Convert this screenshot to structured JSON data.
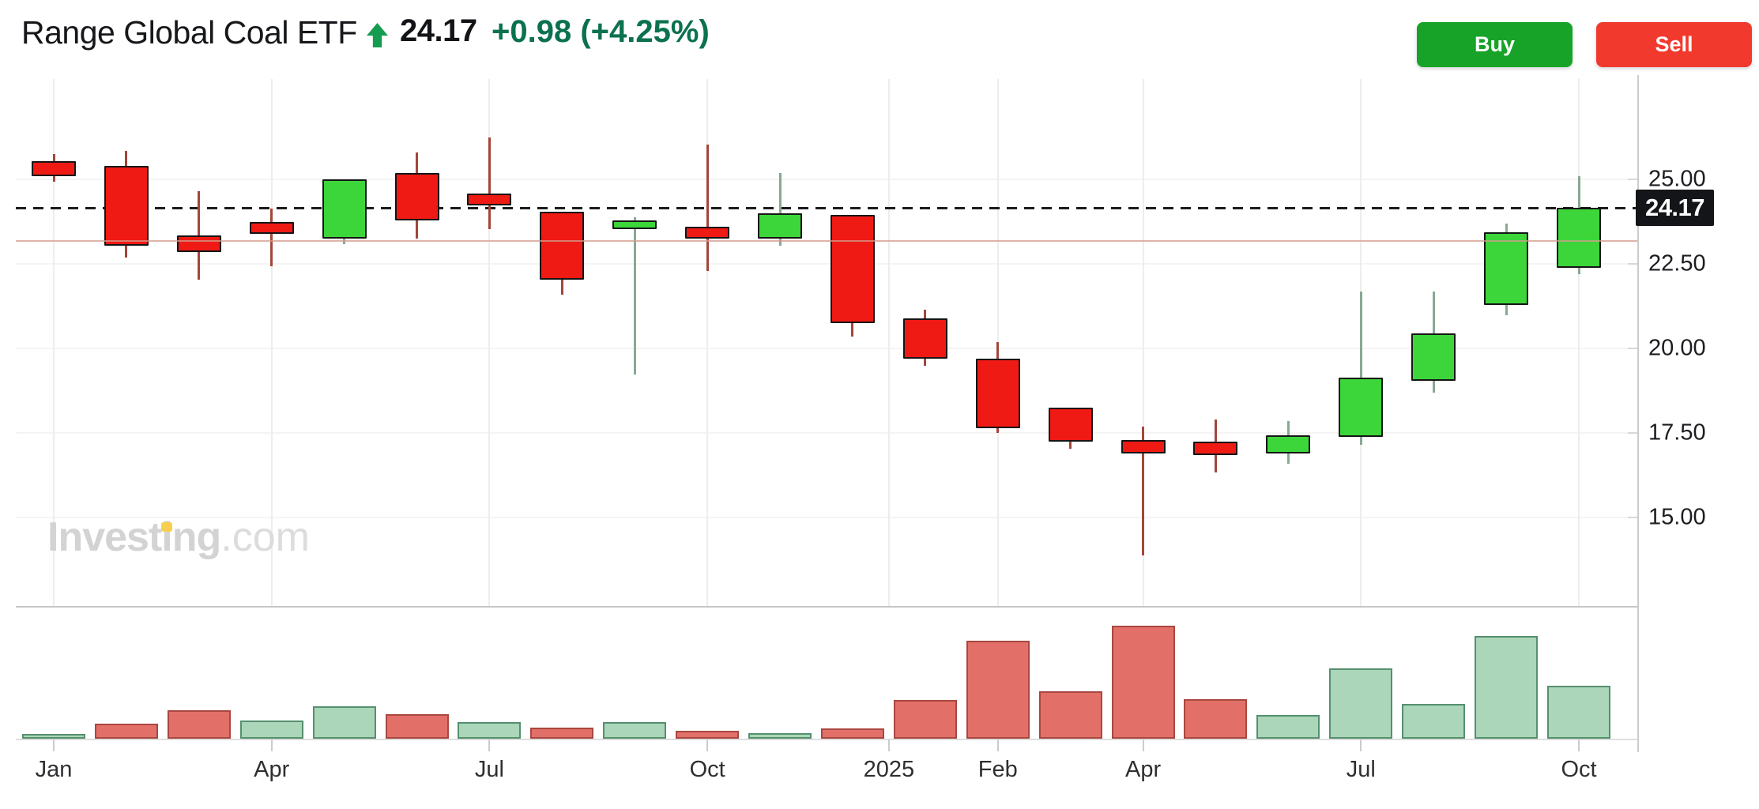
{
  "header": {
    "title": "Range Global Coal ETF",
    "price": "24.17",
    "change": "+0.98",
    "change_pct": "(+4.25%)",
    "buy_label": "Buy",
    "sell_label": "Sell"
  },
  "watermark": {
    "part1": "Invest",
    "dotted_i": "i",
    "part2": "ng",
    "suffix": ".com"
  },
  "price_axis": {
    "tick_labels": [
      "25.00",
      "22.50",
      "20.00",
      "17.50",
      "15.00"
    ],
    "current_label": "24.17"
  },
  "chart_data": {
    "type": "candlestick",
    "title": "Range Global Coal ETF — monthly candles with volume",
    "legend_position": "none",
    "grid": "faint",
    "y_ticks": [
      25.0,
      22.5,
      20.0,
      17.5,
      15.0
    ],
    "ylim": [
      13.5,
      26.8
    ],
    "current_price": 24.17,
    "prev_close": 23.19,
    "x_ticks": [
      {
        "label": "Jan",
        "month_index": 0
      },
      {
        "label": "Apr",
        "month_index": 3
      },
      {
        "label": "Jul",
        "month_index": 6
      },
      {
        "label": "Oct",
        "month_index": 9
      },
      {
        "label": "2025",
        "month_index": 11.5
      },
      {
        "label": "Feb",
        "month_index": 13
      },
      {
        "label": "Apr",
        "month_index": 15
      },
      {
        "label": "Jul",
        "month_index": 18
      },
      {
        "label": "Oct",
        "month_index": 21
      }
    ],
    "volume_unit": "relative, max = 100",
    "candles": [
      {
        "month": "Jan 2024",
        "open": 25.55,
        "high": 25.75,
        "low": 24.95,
        "close": 25.1,
        "dir": "down",
        "volume": 4,
        "vol_dir": "up"
      },
      {
        "month": "Feb 2024",
        "open": 25.4,
        "high": 25.85,
        "low": 22.7,
        "close": 23.05,
        "dir": "down",
        "volume": 13,
        "vol_dir": "down"
      },
      {
        "month": "Mar 2024",
        "open": 23.35,
        "high": 24.65,
        "low": 22.05,
        "close": 22.85,
        "dir": "down",
        "volume": 25,
        "vol_dir": "down"
      },
      {
        "month": "Apr 2024",
        "open": 23.75,
        "high": 24.15,
        "low": 22.45,
        "close": 23.4,
        "dir": "down",
        "volume": 16,
        "vol_dir": "up"
      },
      {
        "month": "May 2024",
        "open": 23.25,
        "high": 25.0,
        "low": 23.1,
        "close": 25.0,
        "dir": "up",
        "volume": 29,
        "vol_dir": "up"
      },
      {
        "month": "Jun 2024",
        "open": 25.2,
        "high": 25.8,
        "low": 23.25,
        "close": 23.8,
        "dir": "down",
        "volume": 22,
        "vol_dir": "down"
      },
      {
        "month": "Jul 2024",
        "open": 24.6,
        "high": 26.25,
        "low": 23.55,
        "close": 24.25,
        "dir": "down",
        "volume": 15,
        "vol_dir": "up"
      },
      {
        "month": "Aug 2024",
        "open": 24.05,
        "high": 24.05,
        "low": 21.6,
        "close": 22.05,
        "dir": "down",
        "volume": 10,
        "vol_dir": "down"
      },
      {
        "month": "Sep 2024",
        "open": 23.55,
        "high": 23.9,
        "low": 19.25,
        "close": 23.8,
        "dir": "up",
        "volume": 15,
        "vol_dir": "up"
      },
      {
        "month": "Oct 2024",
        "open": 23.6,
        "high": 26.05,
        "low": 22.3,
        "close": 23.25,
        "dir": "down",
        "volume": 7,
        "vol_dir": "down"
      },
      {
        "month": "Nov 2024",
        "open": 23.25,
        "high": 25.2,
        "low": 23.05,
        "close": 24.0,
        "dir": "up",
        "volume": 5,
        "vol_dir": "up"
      },
      {
        "month": "Dec 2024",
        "open": 23.95,
        "high": 23.95,
        "low": 20.35,
        "close": 20.75,
        "dir": "down",
        "volume": 9,
        "vol_dir": "down"
      },
      {
        "month": "Jan 2025",
        "open": 20.9,
        "high": 21.15,
        "low": 19.5,
        "close": 19.7,
        "dir": "down",
        "volume": 34,
        "vol_dir": "down"
      },
      {
        "month": "Feb 2025",
        "open": 19.7,
        "high": 20.2,
        "low": 17.5,
        "close": 17.65,
        "dir": "down",
        "volume": 87,
        "vol_dir": "down"
      },
      {
        "month": "Mar 2025",
        "open": 18.25,
        "high": 18.25,
        "low": 17.05,
        "close": 17.25,
        "dir": "down",
        "volume": 42,
        "vol_dir": "down"
      },
      {
        "month": "Apr 2025",
        "open": 17.3,
        "high": 17.7,
        "low": 13.9,
        "close": 16.9,
        "dir": "down",
        "volume": 100,
        "vol_dir": "down"
      },
      {
        "month": "May 2025",
        "open": 17.25,
        "high": 17.9,
        "low": 16.35,
        "close": 16.85,
        "dir": "down",
        "volume": 35,
        "vol_dir": "down"
      },
      {
        "month": "Jun 2025",
        "open": 16.9,
        "high": 17.85,
        "low": 16.6,
        "close": 17.45,
        "dir": "up",
        "volume": 21,
        "vol_dir": "up"
      },
      {
        "month": "Jul 2025",
        "open": 17.4,
        "high": 21.7,
        "low": 17.15,
        "close": 19.15,
        "dir": "up",
        "volume": 62,
        "vol_dir": "up"
      },
      {
        "month": "Aug 2025",
        "open": 19.05,
        "high": 21.7,
        "low": 18.7,
        "close": 20.45,
        "dir": "up",
        "volume": 31,
        "vol_dir": "up"
      },
      {
        "month": "Sep 2025",
        "open": 21.3,
        "high": 23.7,
        "low": 21.0,
        "close": 23.45,
        "dir": "up",
        "volume": 91,
        "vol_dir": "up"
      },
      {
        "month": "Oct 2025",
        "open": 22.4,
        "high": 25.1,
        "low": 22.2,
        "close": 24.17,
        "dir": "up",
        "volume": 47,
        "vol_dir": "up"
      }
    ]
  },
  "colors": {
    "candle_up": "#3cd63a",
    "candle_down": "#ef1a14",
    "candle_border": "#151515",
    "wick_up": "#88a991",
    "wick_down": "#a3463a",
    "volume_up_fill": "#abd6b9",
    "volume_up_border": "#55906e",
    "volume_down_fill": "#e27069",
    "volume_down_border": "#a84740",
    "current_price_line": "#1c1c1c",
    "prev_close_line": "#d49b8c",
    "up_text": "#0b7150",
    "buy_button": "#17a327",
    "sell_button": "#f2392e"
  }
}
